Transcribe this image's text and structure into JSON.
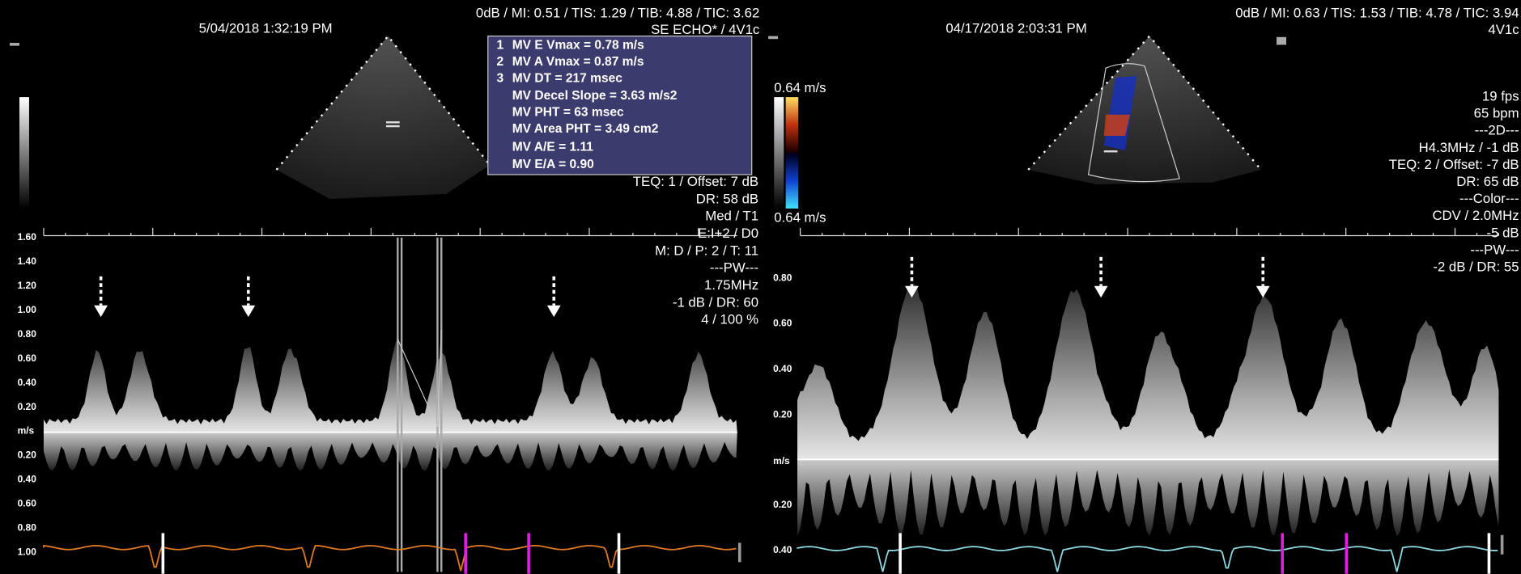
{
  "left_panel": {
    "date": "5/04/2018 1:32:19 PM",
    "acoustic": "0dB / MI: 0.51 / TIS: 1.29 / TIB: 4.88 / TIC: 3.62",
    "probe": "SE ECHO* / 4V1c",
    "measurements": [
      {
        "index": "1",
        "text": "MV E Vmax = 0.78 m/s"
      },
      {
        "index": "2",
        "text": "MV A Vmax = 0.87 m/s"
      },
      {
        "index": "3",
        "text": "MV DT = 217 msec"
      },
      {
        "text": "MV Decel Slope = 3.63 m/s2"
      },
      {
        "text": "MV PHT = 63 msec"
      },
      {
        "text": "MV Area PHT = 3.49 cm2"
      },
      {
        "text": "MV A/E = 1.11"
      },
      {
        "text": "MV E/A = 0.90"
      }
    ],
    "settings": [
      "TEQ: 1 / Offset: 7 dB",
      "DR: 58 dB",
      "Med / T1",
      "E:I+2 / D0",
      "M: D / P: 2 / T: 11",
      "---PW---",
      "1.75MHz",
      "-1 dB / DR: 60",
      "4 / 100 %"
    ],
    "scale": [
      "1.60",
      "1.40",
      "1.20",
      "1.00",
      "0.80",
      "0.60",
      "0.40",
      "0.20",
      "m/s",
      "0.20",
      "0.40",
      "0.60",
      "0.80",
      "1.00"
    ]
  },
  "right_panel": {
    "date": "04/17/2018 2:03:31 PM",
    "acoustic": "0dB / MI: 0.63 / TIS: 1.53 / TIB: 4.78 / TIC: 3.94",
    "probe": "4V1c",
    "color_scale": [
      "0.64 m/s",
      "0.64 m/s"
    ],
    "settings": [
      "19 fps",
      "65 bpm",
      "---2D---",
      "H4.3MHz / -1 dB",
      "TEQ: 2 / Offset: -7 dB",
      "DR: 65 dB",
      "---Color---",
      "CDV / 2.0MHz",
      "-5 dB",
      "---PW---",
      "-2 dB / DR: 55"
    ],
    "scale": [
      "0.80",
      "0.60",
      "0.40",
      "0.20",
      "m/s",
      "0.20",
      "0.40"
    ]
  }
}
